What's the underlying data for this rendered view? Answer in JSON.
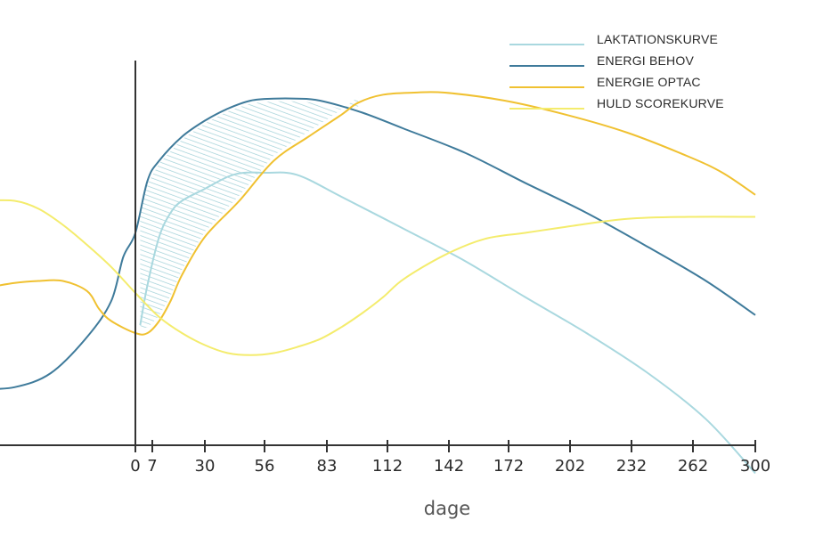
{
  "chart_data": {
    "type": "line",
    "xlabel": "dage",
    "ylabel": "",
    "xlim": [
      -65,
      300
    ],
    "ylim": [
      0,
      100
    ],
    "x_ticks": [
      0,
      7,
      30,
      56,
      83,
      112,
      142,
      172,
      202,
      232,
      262,
      300
    ],
    "tick_labels": [
      "0",
      "7",
      "30",
      "56",
      "83",
      "112",
      "142",
      "172",
      "202",
      "232",
      "262",
      "300"
    ],
    "vertical_line_at": 0,
    "grid": false,
    "legend_position": "top-right",
    "shaded_region": {
      "between": [
        "ENERGI BEHOV",
        "ENERGIE OPTAC"
      ],
      "x_range": [
        2,
        98
      ],
      "pattern": "diagonal-hatch",
      "color": "#9ecfd6"
    },
    "series": [
      {
        "name": "LAKTATIONSKURVE",
        "color": "#a9d8df",
        "x": [
          2,
          5,
          10,
          15,
          20,
          30,
          40,
          47,
          56,
          70,
          90,
          120,
          150,
          180,
          210,
          240,
          270,
          300
        ],
        "y": [
          30,
          40,
          52,
          58,
          61,
          64,
          67,
          68,
          68,
          67.5,
          62,
          54,
          46,
          37,
          28,
          18,
          6.5,
          -7
        ]
      },
      {
        "name": "ENERGI BEHOV",
        "color": "#3f7b9b",
        "x": [
          -65,
          -50,
          -35,
          -20,
          -10,
          -5,
          0,
          5,
          10,
          20,
          30,
          40,
          50,
          60,
          70,
          80,
          100,
          120,
          150,
          180,
          210,
          240,
          270,
          300
        ],
        "y": [
          14,
          14.5,
          18,
          27,
          36,
          47,
          53,
          66,
          71,
          77,
          81,
          84,
          86,
          86.5,
          86.5,
          86,
          83,
          79,
          73,
          65.5,
          58,
          49.5,
          41,
          32.5
        ]
      },
      {
        "name": "ENERGIE OPTAC",
        "color": "#f0c131",
        "x": [
          -65,
          -50,
          -40,
          -30,
          -20,
          -15,
          -10,
          0,
          5,
          10,
          15,
          20,
          30,
          45,
          60,
          75,
          90,
          98,
          110,
          125,
          140,
          170,
          200,
          230,
          260,
          280,
          300
        ],
        "y": [
          39,
          40.5,
          41,
          41,
          38.5,
          34,
          31,
          28,
          28,
          31,
          36,
          42.5,
          52,
          61,
          71,
          77,
          82.5,
          85.5,
          87.5,
          88,
          88,
          86,
          82.5,
          78,
          72,
          68,
          62.5
        ]
      },
      {
        "name": "HULD SCOREKURVE",
        "color": "#f4ec6d",
        "x": [
          -62,
          -50,
          -40,
          -30,
          -20,
          -10,
          0,
          10,
          20,
          30,
          40,
          50,
          60,
          70,
          80,
          90,
          100,
          110,
          120,
          140,
          160,
          180,
          200,
          230,
          260,
          300
        ],
        "y": [
          61,
          61,
          59,
          55,
          50,
          44.5,
          38,
          32,
          28,
          25,
          23,
          22.5,
          23,
          24.5,
          26.5,
          29.5,
          33,
          37,
          41.5,
          47.5,
          51.5,
          53,
          54.5,
          56.5,
          57,
          57
        ]
      }
    ]
  }
}
